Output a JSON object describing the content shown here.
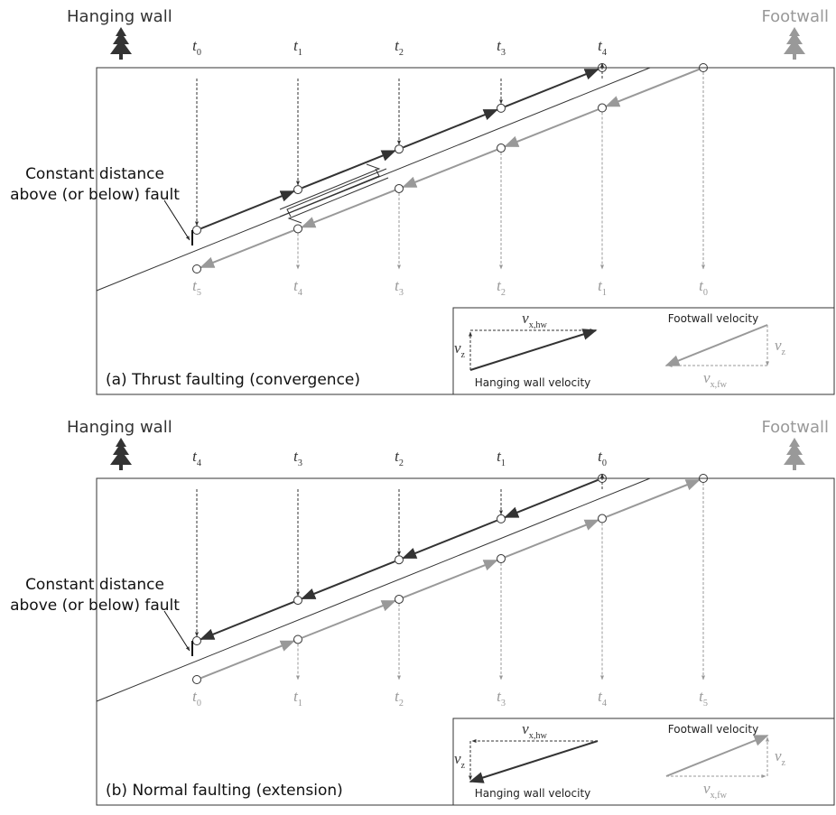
{
  "panels": [
    {
      "caption": "(a) Thrust faulting (convergence)",
      "hanging_wall": "Hanging wall",
      "footwall": "Footwall",
      "annotation": [
        "Constant distance",
        "above (or below) fault"
      ],
      "top_labels": [
        {
          "var": "t",
          "sub": "0"
        },
        {
          "var": "t",
          "sub": "1"
        },
        {
          "var": "t",
          "sub": "2"
        },
        {
          "var": "t",
          "sub": "3"
        },
        {
          "var": "t",
          "sub": "4"
        }
      ],
      "bottom_labels": [
        {
          "var": "t",
          "sub": "5"
        },
        {
          "var": "t",
          "sub": "4"
        },
        {
          "var": "t",
          "sub": "3"
        },
        {
          "var": "t",
          "sub": "2"
        },
        {
          "var": "t",
          "sub": "1"
        },
        {
          "var": "t",
          "sub": "0"
        }
      ],
      "legend": {
        "hw_vx": {
          "var": "v",
          "sub": "x,hw"
        },
        "hw_vz": {
          "var": "v",
          "sub": "z"
        },
        "hw_title": "Hanging wall velocity",
        "fw_title": "Footwall velocity",
        "fw_vz": {
          "var": "v",
          "sub": "z"
        },
        "fw_vx": {
          "var": "v",
          "sub": "x,fw"
        }
      }
    },
    {
      "caption": "(b) Normal faulting (extension)",
      "hanging_wall": "Hanging wall",
      "footwall": "Footwall",
      "annotation": [
        "Constant distance",
        "above (or below) fault"
      ],
      "top_labels": [
        {
          "var": "t",
          "sub": "4"
        },
        {
          "var": "t",
          "sub": "3"
        },
        {
          "var": "t",
          "sub": "2"
        },
        {
          "var": "t",
          "sub": "1"
        },
        {
          "var": "t",
          "sub": "0"
        }
      ],
      "bottom_labels": [
        {
          "var": "t",
          "sub": "0"
        },
        {
          "var": "t",
          "sub": "1"
        },
        {
          "var": "t",
          "sub": "2"
        },
        {
          "var": "t",
          "sub": "3"
        },
        {
          "var": "t",
          "sub": "4"
        },
        {
          "var": "t",
          "sub": "5"
        }
      ],
      "legend": {
        "hw_vx": {
          "var": "v",
          "sub": "x,hw"
        },
        "hw_vz": {
          "var": "v",
          "sub": "z"
        },
        "hw_title": "Hanging wall velocity",
        "fw_title": "Footwall velocity",
        "fw_vz": {
          "var": "v",
          "sub": "z"
        },
        "fw_vx": {
          "var": "v",
          "sub": "x,fw"
        }
      }
    }
  ]
}
